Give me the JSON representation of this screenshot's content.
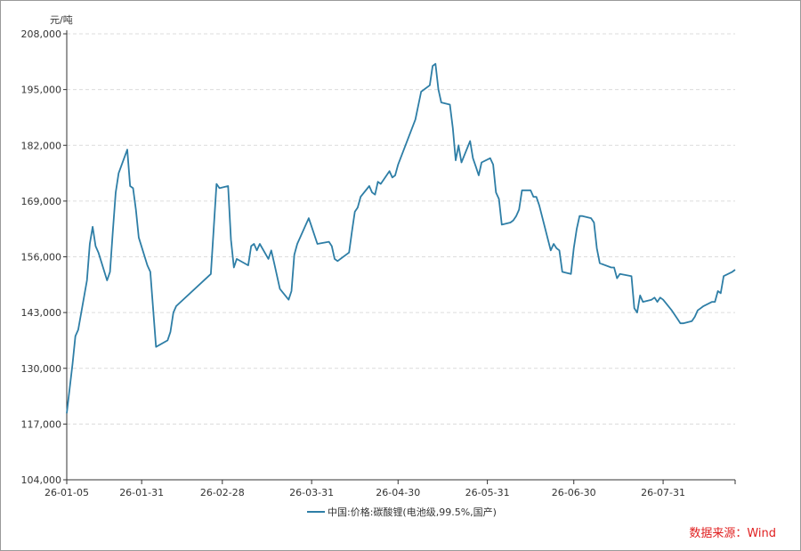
{
  "chart_data": {
    "type": "line",
    "title": "",
    "xlabel": "",
    "ylabel": "元/吨",
    "ylim": [
      104000,
      208000
    ],
    "yticks": [
      "208,000",
      "195,000",
      "182,000",
      "169,000",
      "156,000",
      "143,000",
      "130,000",
      "117,000",
      "104,000"
    ],
    "yticks_values": [
      208000,
      195000,
      182000,
      169000,
      156000,
      143000,
      130000,
      117000,
      104000
    ],
    "xticks": [
      "26-01-05",
      "26-01-31",
      "26-02-28",
      "26-03-31",
      "26-04-30",
      "26-05-31",
      "26-06-30",
      "26-07-31"
    ],
    "grid": true,
    "legend_position": "bottom",
    "series": [
      {
        "name": "中国:价格:碳酸锂(电池级,99.5%,国产)",
        "color": "#2e7ea6",
        "points": [
          [
            "26-01-05",
            119500
          ],
          [
            "26-01-07",
            131000
          ],
          [
            "26-01-08",
            137500
          ],
          [
            "26-01-09",
            139000
          ],
          [
            "26-01-12",
            150500
          ],
          [
            "26-01-13",
            159000
          ],
          [
            "26-01-14",
            163000
          ],
          [
            "26-01-15",
            158500
          ],
          [
            "26-01-16",
            157000
          ],
          [
            "26-01-19",
            150500
          ],
          [
            "26-01-20",
            152500
          ],
          [
            "26-01-21",
            162000
          ],
          [
            "26-01-22",
            171000
          ],
          [
            "26-01-23",
            175500
          ],
          [
            "26-01-26",
            181000
          ],
          [
            "26-01-27",
            172500
          ],
          [
            "26-01-28",
            172000
          ],
          [
            "26-01-29",
            167000
          ],
          [
            "26-01-30",
            160500
          ],
          [
            "26-02-02",
            154000
          ],
          [
            "26-02-03",
            152500
          ],
          [
            "26-02-05",
            135000
          ],
          [
            "26-02-09",
            136500
          ],
          [
            "26-02-10",
            138500
          ],
          [
            "26-02-11",
            143000
          ],
          [
            "26-02-12",
            144500
          ],
          [
            "26-02-24",
            152000
          ],
          [
            "26-02-26",
            173000
          ],
          [
            "26-02-27",
            172000
          ],
          [
            "26-03-02",
            172500
          ],
          [
            "26-03-03",
            160000
          ],
          [
            "26-03-04",
            153500
          ],
          [
            "26-03-05",
            155500
          ],
          [
            "26-03-09",
            154000
          ],
          [
            "26-03-10",
            158500
          ],
          [
            "26-03-11",
            159000
          ],
          [
            "26-03-12",
            157500
          ],
          [
            "26-03-13",
            159000
          ],
          [
            "26-03-16",
            155500
          ],
          [
            "26-03-17",
            157500
          ],
          [
            "26-03-18",
            154500
          ],
          [
            "26-03-20",
            148500
          ],
          [
            "26-03-23",
            146000
          ],
          [
            "26-03-24",
            148000
          ],
          [
            "26-03-25",
            156500
          ],
          [
            "26-03-26",
            159000
          ],
          [
            "26-03-30",
            165000
          ],
          [
            "26-03-31",
            163000
          ],
          [
            "26-04-02",
            159000
          ],
          [
            "26-04-06",
            159500
          ],
          [
            "26-04-07",
            158500
          ],
          [
            "26-04-08",
            155500
          ],
          [
            "26-04-09",
            155000
          ],
          [
            "26-04-13",
            157000
          ],
          [
            "26-04-14",
            162000
          ],
          [
            "26-04-15",
            166500
          ],
          [
            "26-04-16",
            167500
          ],
          [
            "26-04-17",
            170000
          ],
          [
            "26-04-20",
            172500
          ],
          [
            "26-04-21",
            171000
          ],
          [
            "26-04-22",
            170500
          ],
          [
            "26-04-23",
            173500
          ],
          [
            "26-04-24",
            173000
          ],
          [
            "26-04-27",
            176000
          ],
          [
            "26-04-28",
            174500
          ],
          [
            "26-04-29",
            175000
          ],
          [
            "26-04-30",
            177500
          ],
          [
            "26-05-06",
            188000
          ],
          [
            "26-05-08",
            194500
          ],
          [
            "26-05-11",
            196000
          ],
          [
            "26-05-12",
            200500
          ],
          [
            "26-05-13",
            201000
          ],
          [
            "26-05-14",
            195000
          ],
          [
            "26-05-15",
            192000
          ],
          [
            "26-05-18",
            191500
          ],
          [
            "26-05-19",
            186000
          ],
          [
            "26-05-20",
            178500
          ],
          [
            "26-05-21",
            182000
          ],
          [
            "26-05-22",
            178000
          ],
          [
            "26-05-25",
            183000
          ],
          [
            "26-05-26",
            179000
          ],
          [
            "26-05-27",
            177000
          ],
          [
            "26-05-28",
            175000
          ],
          [
            "26-05-29",
            178000
          ],
          [
            "26-06-01",
            179000
          ],
          [
            "26-06-02",
            177500
          ],
          [
            "26-06-03",
            171000
          ],
          [
            "26-06-04",
            169500
          ],
          [
            "26-06-05",
            163500
          ],
          [
            "26-06-08",
            164000
          ],
          [
            "26-06-09",
            164500
          ],
          [
            "26-06-10",
            165500
          ],
          [
            "26-06-11",
            167000
          ],
          [
            "26-06-12",
            171500
          ],
          [
            "26-06-15",
            171500
          ],
          [
            "26-06-16",
            170000
          ],
          [
            "26-06-17",
            170000
          ],
          [
            "26-06-18",
            168000
          ],
          [
            "26-06-22",
            157500
          ],
          [
            "26-06-23",
            159000
          ],
          [
            "26-06-24",
            158000
          ],
          [
            "26-06-25",
            157500
          ],
          [
            "26-06-26",
            152500
          ],
          [
            "26-06-29",
            152000
          ],
          [
            "26-06-30",
            158000
          ],
          [
            "26-07-01",
            162500
          ],
          [
            "26-07-02",
            165500
          ],
          [
            "26-07-03",
            165500
          ],
          [
            "26-07-06",
            165000
          ],
          [
            "26-07-07",
            164000
          ],
          [
            "26-07-08",
            158000
          ],
          [
            "26-07-09",
            154500
          ],
          [
            "26-07-13",
            153500
          ],
          [
            "26-07-14",
            153500
          ],
          [
            "26-07-15",
            151000
          ],
          [
            "26-07-16",
            152000
          ],
          [
            "26-07-20",
            151500
          ],
          [
            "26-07-21",
            144000
          ],
          [
            "26-07-22",
            143000
          ],
          [
            "26-07-23",
            147000
          ],
          [
            "26-07-24",
            145500
          ],
          [
            "26-07-27",
            146000
          ],
          [
            "26-07-28",
            146500
          ],
          [
            "26-07-29",
            145500
          ],
          [
            "26-07-30",
            146500
          ],
          [
            "26-07-31",
            146000
          ],
          [
            "26-08-03",
            143500
          ],
          [
            "26-08-04",
            142500
          ],
          [
            "26-08-05",
            141500
          ],
          [
            "26-08-06",
            140500
          ],
          [
            "26-08-07",
            140500
          ],
          [
            "26-08-10",
            141000
          ],
          [
            "26-08-11",
            142000
          ],
          [
            "26-08-12",
            143500
          ],
          [
            "26-08-13",
            144000
          ],
          [
            "26-08-14",
            144500
          ],
          [
            "26-08-17",
            145500
          ],
          [
            "26-08-18",
            145500
          ],
          [
            "26-08-19",
            148000
          ],
          [
            "26-08-20",
            147500
          ],
          [
            "26-08-21",
            151500
          ],
          [
            "26-08-24",
            152500
          ],
          [
            "26-08-25",
            153000
          ]
        ]
      }
    ]
  },
  "source_label": "数据来源：Wind"
}
